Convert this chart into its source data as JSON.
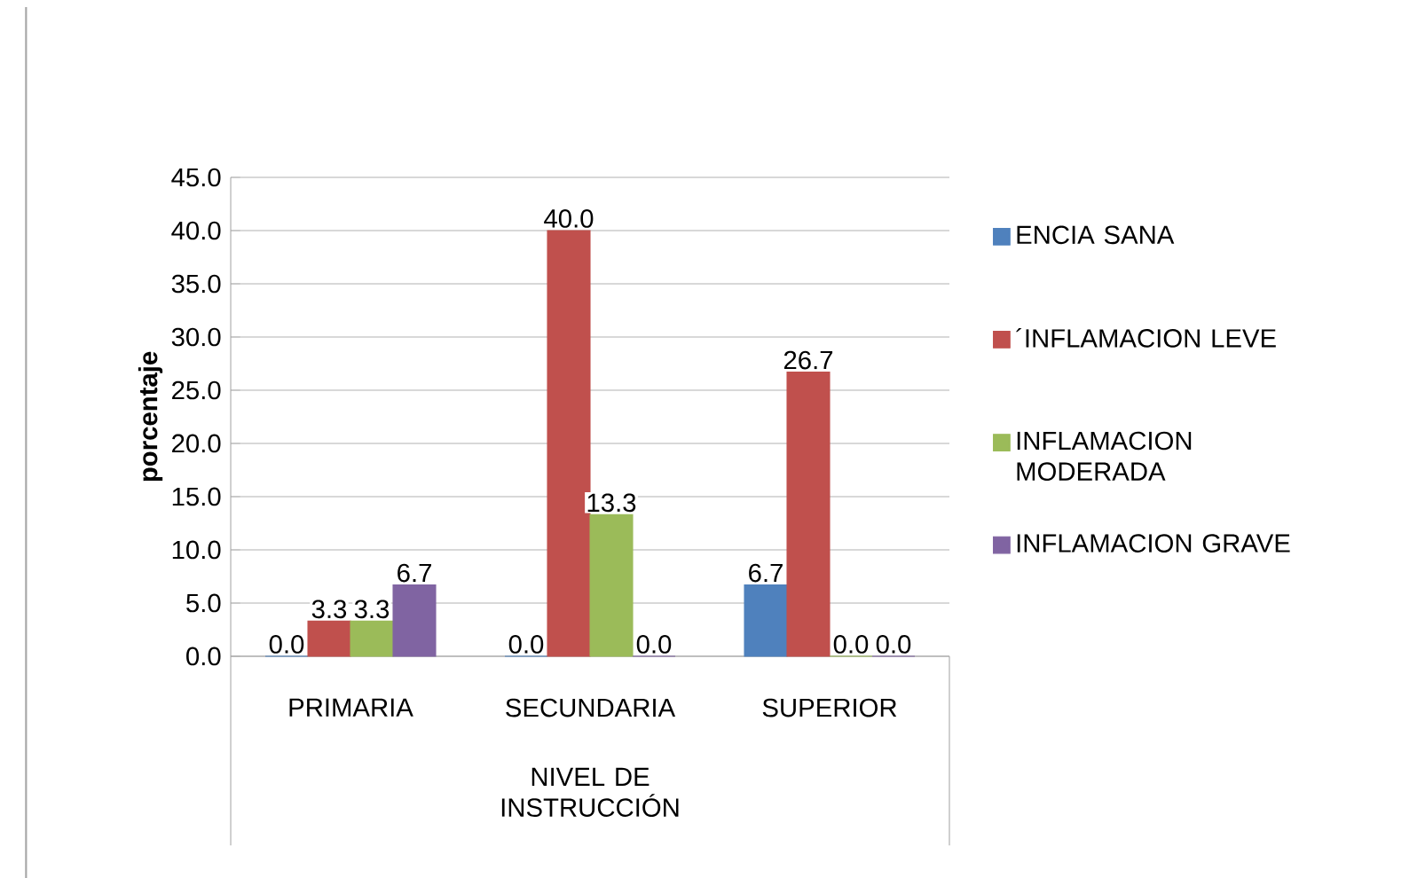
{
  "chart_data": {
    "type": "bar",
    "ylabel": "porcentaje",
    "xlabel": "NIVEL DE INSTRUCCIÓN",
    "categories": [
      "PRIMARIA",
      "SECUNDARIA",
      "SUPERIOR"
    ],
    "series": [
      {
        "name": "ENCIA SANA",
        "color": "#4f81bd",
        "values": [
          0,
          0,
          6.7
        ],
        "value_labels": [
          "0.0",
          "0.0",
          "6.7"
        ]
      },
      {
        "name": "´INFLAMACION LEVE",
        "color": "#c0504d",
        "values": [
          3.3,
          40,
          26.7
        ],
        "value_labels": [
          "3.3",
          "40.0",
          "26.7"
        ]
      },
      {
        "name": "INFLAMACION MODERADA",
        "color": "#9bbb59",
        "values": [
          3.3,
          13.3,
          0
        ],
        "value_labels": [
          "3.3",
          "13.3",
          "0.0"
        ]
      },
      {
        "name": "INFLAMACION GRAVE",
        "color": "#8064a2",
        "values": [
          6.7,
          0,
          0
        ],
        "value_labels": [
          "6.7",
          "0.0",
          "0.0"
        ]
      }
    ],
    "ylim": [
      0,
      45
    ],
    "yticks": [
      {
        "value": 0,
        "label": "0.0"
      },
      {
        "value": 5,
        "label": "5.0"
      },
      {
        "value": 10,
        "label": "10.0"
      },
      {
        "value": 15,
        "label": "15.0"
      },
      {
        "value": 20,
        "label": "20.0"
      },
      {
        "value": 25,
        "label": "25.0"
      },
      {
        "value": 30,
        "label": "30.0"
      },
      {
        "value": 35,
        "label": "35.0"
      },
      {
        "value": 40,
        "label": "40.0"
      },
      {
        "value": 45,
        "label": "45.0"
      }
    ],
    "grid": "y",
    "legend": "right"
  }
}
